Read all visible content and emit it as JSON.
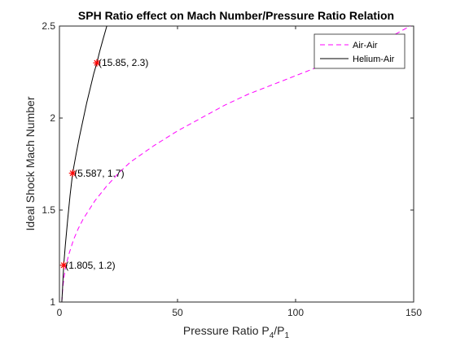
{
  "chart_data": {
    "type": "line",
    "title": "SPH Ratio effect on Mach Number/Pressure Ratio Relation",
    "xlabel": {
      "main": "Pressure Ratio P",
      "sub1": "4",
      "slash": "/P",
      "sub2": "1"
    },
    "ylabel": "Ideal Shock Mach Number",
    "xlim": [
      0,
      150
    ],
    "ylim": [
      1,
      2.5
    ],
    "x_ticks": [
      0,
      50,
      100,
      150
    ],
    "x_tick_labels": [
      "0",
      "50",
      "100",
      "150"
    ],
    "y_ticks": [
      1,
      1.5,
      2,
      2.5
    ],
    "y_tick_labels": [
      "1",
      "1.5",
      "2",
      "2.5"
    ],
    "grid": false,
    "legend_position": "top-right",
    "series": [
      {
        "name": "Air-Air",
        "color": "#ff00ff",
        "line_style": "dashed",
        "x": [
          1,
          1.3,
          1.6,
          2,
          2.5,
          3,
          4,
          5,
          6,
          8,
          10,
          12,
          15,
          20,
          25,
          30,
          40,
          50,
          60,
          70,
          80,
          90,
          100,
          110,
          120,
          130,
          140,
          150
        ],
        "y": [
          1.0,
          1.06,
          1.1,
          1.14,
          1.18,
          1.21,
          1.26,
          1.3,
          1.34,
          1.4,
          1.45,
          1.49,
          1.55,
          1.63,
          1.7,
          1.76,
          1.85,
          1.93,
          2.0,
          2.07,
          2.13,
          2.18,
          2.23,
          2.28,
          2.33,
          2.38,
          2.44,
          2.51
        ]
      },
      {
        "name": "Helium-Air",
        "color": "#000000",
        "line_style": "solid",
        "x": [
          1,
          1.3,
          1.805,
          2.5,
          3.5,
          4.5,
          5.587,
          7,
          8.5,
          10,
          11.5,
          13,
          14.5,
          15.85,
          17,
          18.5,
          20.5
        ],
        "y": [
          1.0,
          1.07,
          1.2,
          1.31,
          1.45,
          1.58,
          1.7,
          1.8,
          1.9,
          1.99,
          2.08,
          2.16,
          2.24,
          2.3,
          2.36,
          2.43,
          2.52
        ]
      }
    ],
    "markers": [
      {
        "x": 1.805,
        "y": 1.2,
        "label": "(1.805, 1.2)",
        "color": "#ff0000",
        "symbol": "star"
      },
      {
        "x": 5.587,
        "y": 1.7,
        "label": "(5.587, 1.7)",
        "color": "#ff0000",
        "symbol": "star"
      },
      {
        "x": 15.85,
        "y": 2.3,
        "label": "(15.85, 2.3)",
        "color": "#ff0000",
        "symbol": "star"
      }
    ]
  }
}
